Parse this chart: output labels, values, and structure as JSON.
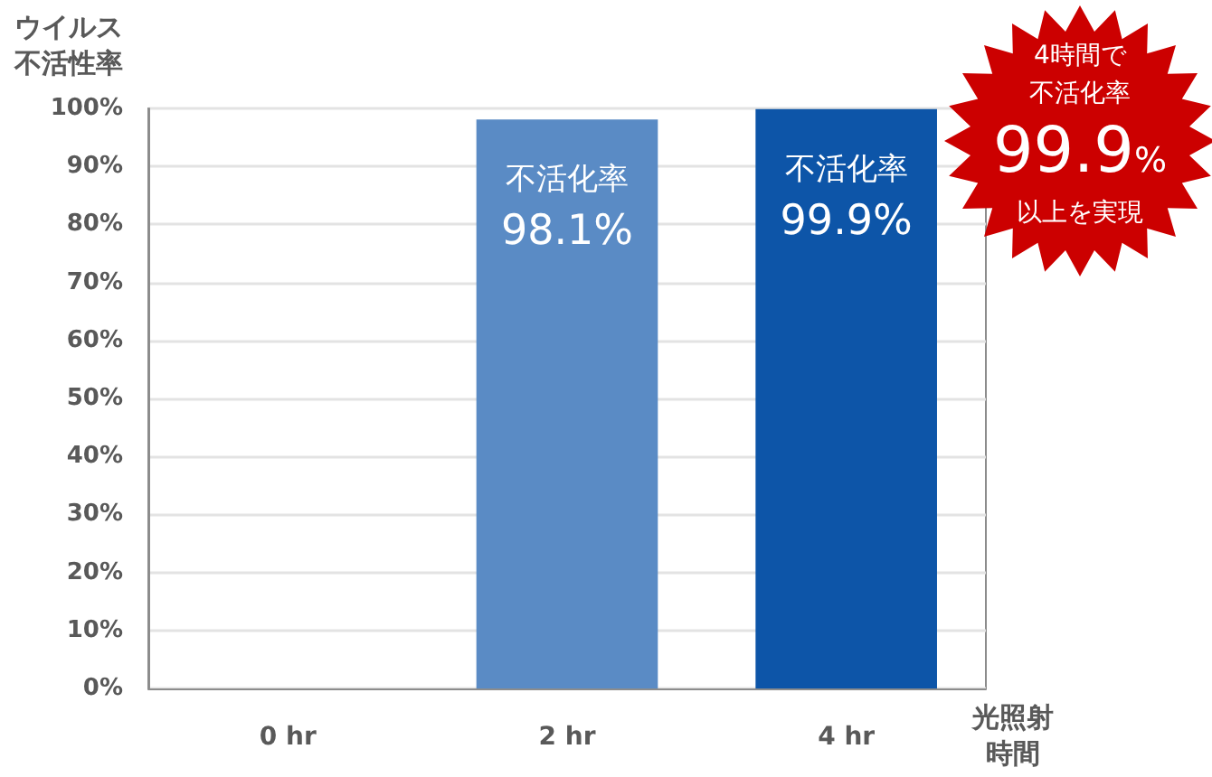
{
  "chart_data": {
    "type": "bar",
    "categories": [
      "0 hr",
      "2 hr",
      "4 hr"
    ],
    "values": [
      0,
      98.1,
      99.9
    ],
    "colors": [
      "#5a8bc5",
      "#5a8bc5",
      "#0d55a8"
    ],
    "value_labels": [
      null,
      "不活化率\n98.1%",
      "不活化率\n99.9%"
    ],
    "ylabel": "ウイルス不活性率",
    "xlabel": "光照射時間",
    "ylim": [
      0,
      100
    ],
    "yticks": [
      {
        "value": 0,
        "label": "0%"
      },
      {
        "value": 10,
        "label": "10%"
      },
      {
        "value": 20,
        "label": "20%"
      },
      {
        "value": 30,
        "label": "30%"
      },
      {
        "value": 40,
        "label": "40%"
      },
      {
        "value": 50,
        "label": "50%"
      },
      {
        "value": 60,
        "label": "60%"
      },
      {
        "value": 70,
        "label": "70%"
      },
      {
        "value": 80,
        "label": "80%"
      },
      {
        "value": 90,
        "label": "90%"
      },
      {
        "value": 100,
        "label": "100%"
      }
    ],
    "grid": "y",
    "annotations": [
      "4時間で不活化率99.9%以上を実現"
    ]
  }
}
